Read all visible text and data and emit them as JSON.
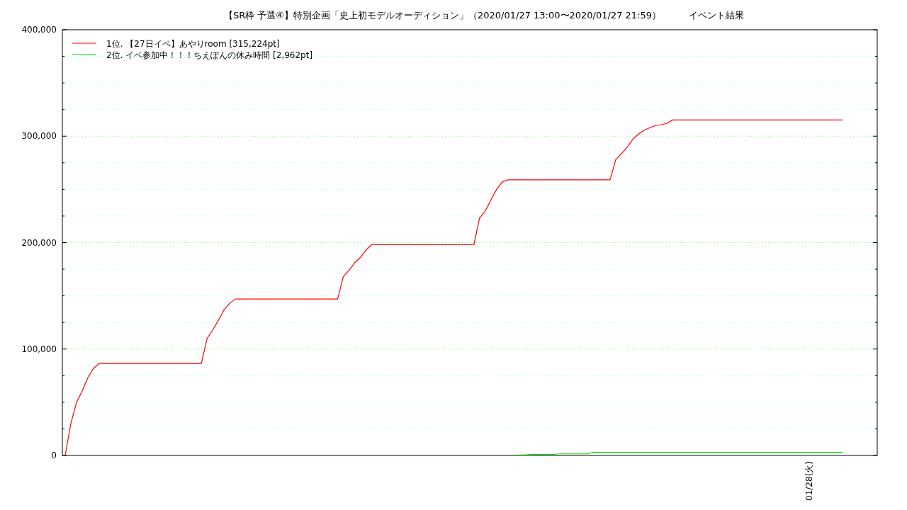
{
  "chart_data": {
    "type": "line",
    "title": "【SR枠 予選④】特別企画「史上初モデルオーディション」（2020/01/27 13:00〜2020/01/27 21:59）　　　イベント結果",
    "categories": [
      null,
      null,
      null,
      null,
      null,
      null,
      null,
      null,
      null,
      null,
      null,
      null,
      null,
      null,
      null,
      null,
      null,
      null,
      null,
      null,
      null,
      null,
      null,
      null,
      null,
      null,
      null,
      null,
      null,
      null,
      null,
      null,
      null,
      null,
      null,
      null,
      null,
      null,
      null,
      null,
      null,
      null,
      null,
      null,
      null,
      null,
      null,
      null,
      null,
      null,
      null,
      null,
      null,
      null,
      null,
      null,
      null,
      null,
      null,
      null,
      null,
      null,
      null,
      null,
      null,
      null,
      null,
      null,
      null,
      null,
      null,
      null,
      null,
      null,
      null,
      null,
      null,
      null,
      null,
      null,
      null,
      null,
      null,
      null,
      null,
      null,
      null,
      null,
      null,
      null,
      null,
      null,
      null,
      null,
      null,
      null,
      null,
      null,
      null,
      null,
      null,
      null,
      null,
      null,
      null,
      null,
      null,
      null,
      null,
      null,
      null,
      null,
      null,
      null,
      null,
      null,
      null,
      null,
      null,
      null,
      null,
      null,
      null,
      null,
      null,
      null,
      null,
      null,
      null,
      null,
      null,
      null,
      null,
      null,
      null,
      null,
      null,
      null
    ],
    "series": [
      {
        "name": "1位. 【27日イベ】あやりroom [315,224pt]",
        "color": "#ff0000",
        "values": [
          0,
          30000,
          50000,
          60600,
          73200,
          81900,
          86500,
          86500,
          86500,
          86500,
          86500,
          86500,
          86500,
          86500,
          86500,
          86500,
          86500,
          86500,
          86500,
          86500,
          86500,
          86500,
          86500,
          86500,
          86500,
          110000,
          118000,
          127000,
          137000,
          143000,
          147000,
          147000,
          147000,
          147000,
          147000,
          147000,
          147000,
          147000,
          147000,
          147000,
          147000,
          147000,
          147000,
          147000,
          147000,
          147000,
          147000,
          147000,
          147000,
          168000,
          174000,
          181000,
          186000,
          193000,
          198000,
          198000,
          198000,
          198000,
          198000,
          198000,
          198000,
          198000,
          198000,
          198000,
          198000,
          198000,
          198000,
          198000,
          198000,
          198000,
          198000,
          198000,
          198000,
          223000,
          229600,
          240000,
          250000,
          257000,
          259000,
          259000,
          259000,
          259000,
          259000,
          259000,
          259000,
          259000,
          259000,
          259000,
          259000,
          259000,
          259000,
          259000,
          259000,
          259000,
          259000,
          259000,
          259000,
          278000,
          283500,
          289500,
          297000,
          302000,
          305500,
          308000,
          310000,
          310800,
          312000,
          315224,
          315224,
          315224,
          315224,
          315224,
          315224,
          315224,
          315224,
          315224,
          315224,
          315224,
          315224,
          315224,
          315224,
          315224,
          315224,
          315224,
          315224,
          315224,
          315224,
          315224,
          315224,
          315224,
          315224,
          315224,
          315224,
          315224,
          315224,
          315224,
          315224,
          315224
        ]
      },
      {
        "name": "2位. イベ参加中！！！ちえぽんの休み時間 [2,962pt]",
        "color": "#00dd00",
        "values": [
          null,
          null,
          null,
          null,
          null,
          null,
          null,
          null,
          null,
          null,
          null,
          null,
          null,
          null,
          null,
          null,
          null,
          null,
          null,
          null,
          null,
          null,
          null,
          null,
          null,
          null,
          null,
          null,
          null,
          null,
          null,
          null,
          null,
          null,
          null,
          null,
          null,
          null,
          null,
          null,
          null,
          null,
          null,
          null,
          null,
          null,
          null,
          null,
          null,
          null,
          null,
          null,
          null,
          null,
          null,
          null,
          null,
          null,
          null,
          null,
          null,
          null,
          null,
          null,
          null,
          null,
          null,
          null,
          null,
          null,
          null,
          null,
          null,
          null,
          null,
          null,
          null,
          null,
          null,
          0,
          500,
          500,
          1000,
          1000,
          1000,
          1000,
          1000,
          1500,
          1500,
          1500,
          1500,
          1500,
          1500,
          2962,
          2962,
          2962,
          2962,
          2962,
          2962,
          2962,
          2962,
          2962,
          2962,
          2962,
          2962,
          2962,
          2962,
          2962,
          2962,
          2962,
          2962,
          2962,
          2962,
          2962,
          2962,
          2962,
          2962,
          2962,
          2962,
          2962,
          2962,
          2962,
          2962,
          2962,
          2962,
          2962,
          2962,
          2962,
          2962,
          2962,
          2962,
          2962,
          2962,
          2962,
          2962,
          2962,
          2962,
          2962
        ]
      }
    ],
    "annotations": [
      "01/28(火)"
    ],
    "ylim": [
      0,
      400000
    ],
    "yticks": [
      {
        "value": 0,
        "label": "0"
      },
      {
        "value": 25000,
        "label": null
      },
      {
        "value": 50000,
        "label": null
      },
      {
        "value": 75000,
        "label": null
      },
      {
        "value": 100000,
        "label": "100,000"
      },
      {
        "value": 125000,
        "label": null
      },
      {
        "value": 150000,
        "label": null
      },
      {
        "value": 175000,
        "label": null
      },
      {
        "value": 200000,
        "label": "200,000"
      },
      {
        "value": 225000,
        "label": null
      },
      {
        "value": 250000,
        "label": null
      },
      {
        "value": 275000,
        "label": null
      },
      {
        "value": 300000,
        "label": "300,000"
      },
      {
        "value": 325000,
        "label": null
      },
      {
        "value": 350000,
        "label": null
      },
      {
        "value": 375000,
        "label": null
      },
      {
        "value": 400000,
        "label": "400,000"
      }
    ],
    "grid": "y",
    "legend": "top left",
    "marker": "none",
    "line_style": "solid"
  }
}
